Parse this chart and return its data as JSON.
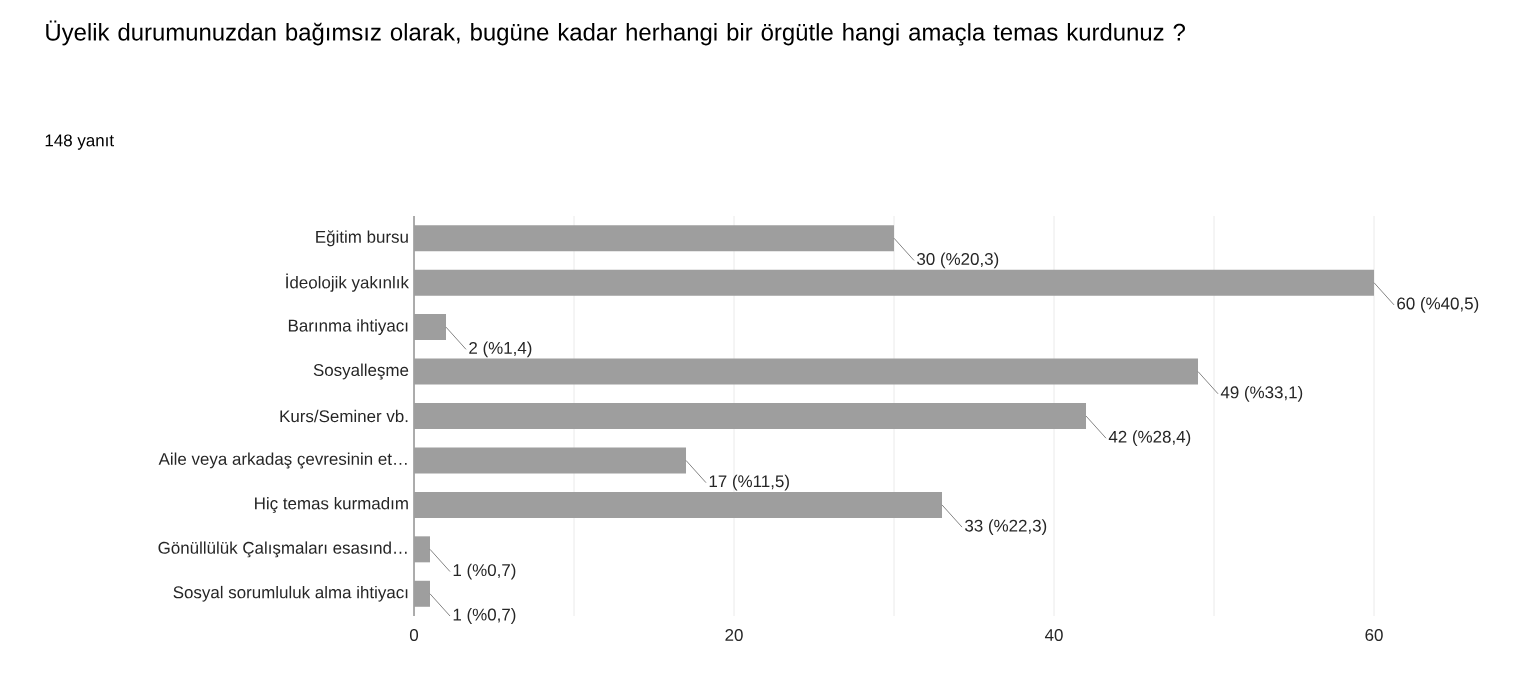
{
  "chart_data": {
    "type": "bar",
    "orientation": "horizontal",
    "title": "Üyelik durumunuzdan bağımsız olarak, bugüne kadar herhangi bir örgütle hangi amaçla temas kurdunuz ?",
    "subtitle": "148 yanıt",
    "categories": [
      "Eğitim bursu",
      "İdeolojik yakınlık",
      "Barınma ihtiyacı",
      "Sosyalleşme",
      "Kurs/Seminer vb.",
      "Aile veya arkadaş çevresinin et…",
      "Hiç temas kurmadım",
      "Gönüllülük Çalışmaları esasınd…",
      "Sosyal sorumluluk alma ihtiyacı"
    ],
    "values": [
      30,
      60,
      2,
      49,
      42,
      17,
      33,
      1,
      1
    ],
    "value_labels": [
      "30 (%20,3)",
      "60 (%40,5)",
      "2 (%1,4)",
      "49 (%33,1)",
      "42 (%28,4)",
      "17 (%11,5)",
      "33 (%22,3)",
      "1 (%0,7)",
      "1 (%0,7)"
    ],
    "color": "#9e9e9e",
    "xlim": [
      0,
      60
    ],
    "xticks": [
      0,
      {
        "value": 10,
        "label": null
      },
      20,
      {
        "value": 30,
        "label": null
      },
      40,
      {
        "value": 50,
        "label": null
      },
      60
    ],
    "grid": true
  }
}
